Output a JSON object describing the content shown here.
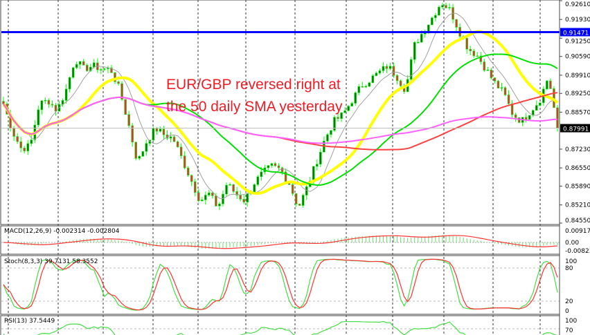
{
  "chart_data": {
    "type": "line",
    "symbol_note": "candlestick price chart with SMAs and MACD / Stochastic / RSI sub-panels",
    "annotation": [
      "EUR/GBP reversed right at",
      "the 50 daily SMA yesterday"
    ],
    "price_axis": {
      "ticks": [
        "0.92610",
        "0.91930",
        "0.91250",
        "0.90590",
        "0.89910",
        "0.89250",
        "0.88570",
        "0.87230",
        "0.86550",
        "0.85890",
        "0.85210",
        "0.84550"
      ],
      "ylim": [
        0.8455,
        0.9261
      ]
    },
    "levels": {
      "resistance": {
        "label": "0.91471",
        "value": 0.91471,
        "color": "#0000ff"
      },
      "last_price": {
        "label": "0.87991",
        "value": 0.87991,
        "color": "#c0c0c0"
      }
    },
    "close_path": [
      0.8887,
      0.8787,
      0.8724,
      0.8736,
      0.8887,
      0.89,
      0.8862,
      0.8937,
      0.905,
      0.9013,
      0.9025,
      0.9013,
      0.9013,
      0.8937,
      0.8812,
      0.8674,
      0.8749,
      0.8799,
      0.8774,
      0.8761,
      0.8686,
      0.8611,
      0.8536,
      0.8561,
      0.8511,
      0.8598,
      0.8561,
      0.8536,
      0.8598,
      0.8636,
      0.8661,
      0.8649,
      0.8598,
      0.8511,
      0.8586,
      0.8674,
      0.8761,
      0.8824,
      0.8849,
      0.89,
      0.895,
      0.8975,
      0.9,
      0.9025,
      0.8987,
      0.8937,
      0.91,
      0.9151,
      0.9201,
      0.9256,
      0.9226,
      0.9151,
      0.9088,
      0.9063,
      0.9013,
      0.8962,
      0.8925,
      0.8849,
      0.8824,
      0.8862,
      0.89,
      0.8987,
      0.8799
    ],
    "moving_averages": [
      {
        "period": 20,
        "color": "#a0a0a0"
      },
      {
        "period": 50,
        "color": "#ffff00"
      },
      {
        "period": 100,
        "color": "#00e000"
      },
      {
        "period": 200,
        "color": "#ff4040"
      },
      {
        "period": 300,
        "color": "#ff60ff"
      }
    ],
    "colors": {
      "wick": "#00ff00",
      "bull_body": "#008000",
      "bear_body": "#c84030"
    },
    "macd": {
      "label": "MACD(12,26,9) -0.002314 -0.002804",
      "ticks": [
        "0.00917",
        "0.00",
        "-0.008238"
      ]
    },
    "stoch": {
      "label": "Stoch(8,3,3) 39.7131 58.3552",
      "ticks": [
        "100",
        "80",
        "20",
        "0"
      ]
    },
    "rsi": {
      "label": "RSI(13) 37.5449",
      "ticks": [
        "100",
        "70"
      ]
    }
  }
}
